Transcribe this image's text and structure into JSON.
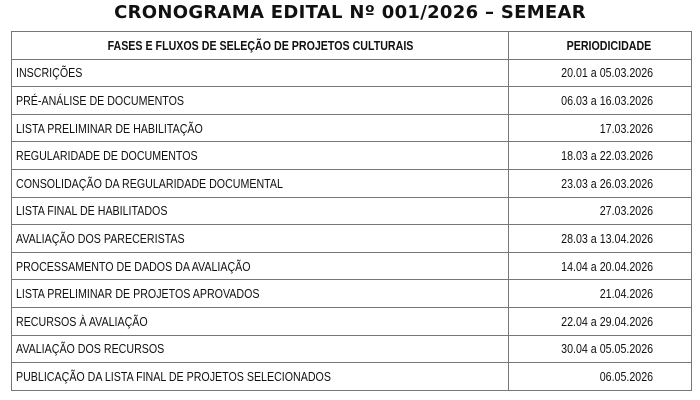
{
  "title": "CRONOGRAMA EDITAL Nº 001/2026 – SEMEAR",
  "table": {
    "headers": [
      "FASES E FLUXOS DE SELEÇÃO DE PROJETOS CULTURAIS",
      "PERIODICIDADE"
    ],
    "rows": [
      [
        "INSCRIÇÕES",
        "20.01 a 05.03.2026"
      ],
      [
        "PRÉ-ANÁLISE DE DOCUMENTOS",
        "06.03 a 16.03.2026"
      ],
      [
        "LISTA PRELIMINAR DE HABILITAÇÃO",
        "17.03.2026"
      ],
      [
        "REGULARIDADE DE DOCUMENTOS",
        "18.03 a 22.03.2026"
      ],
      [
        "CONSOLIDAÇÃO DA REGULARIDADE DOCUMENTAL",
        "23.03 a 26.03.2026"
      ],
      [
        "LISTA FINAL DE HABILITADOS",
        "27.03.2026"
      ],
      [
        "AVALIAÇÃO DOS PARECERISTAS",
        "28.03 a 13.04.2026"
      ],
      [
        "PROCESSAMENTO DE DADOS DA AVALIAÇÃO",
        "14.04 a 20.04.2026"
      ],
      [
        "LISTA PRELIMINAR DE PROJETOS APROVADOS",
        "21.04.2026"
      ],
      [
        "RECURSOS À AVALIAÇÃO",
        "22.04 a 29.04.2026"
      ],
      [
        "AVALIAÇÃO DOS RECURSOS",
        "30.04 a 05.05.2026"
      ],
      [
        "PUBLICAÇÃO DA LISTA FINAL DE PROJETOS SELECIONADOS",
        "06.05.2026"
      ]
    ]
  }
}
